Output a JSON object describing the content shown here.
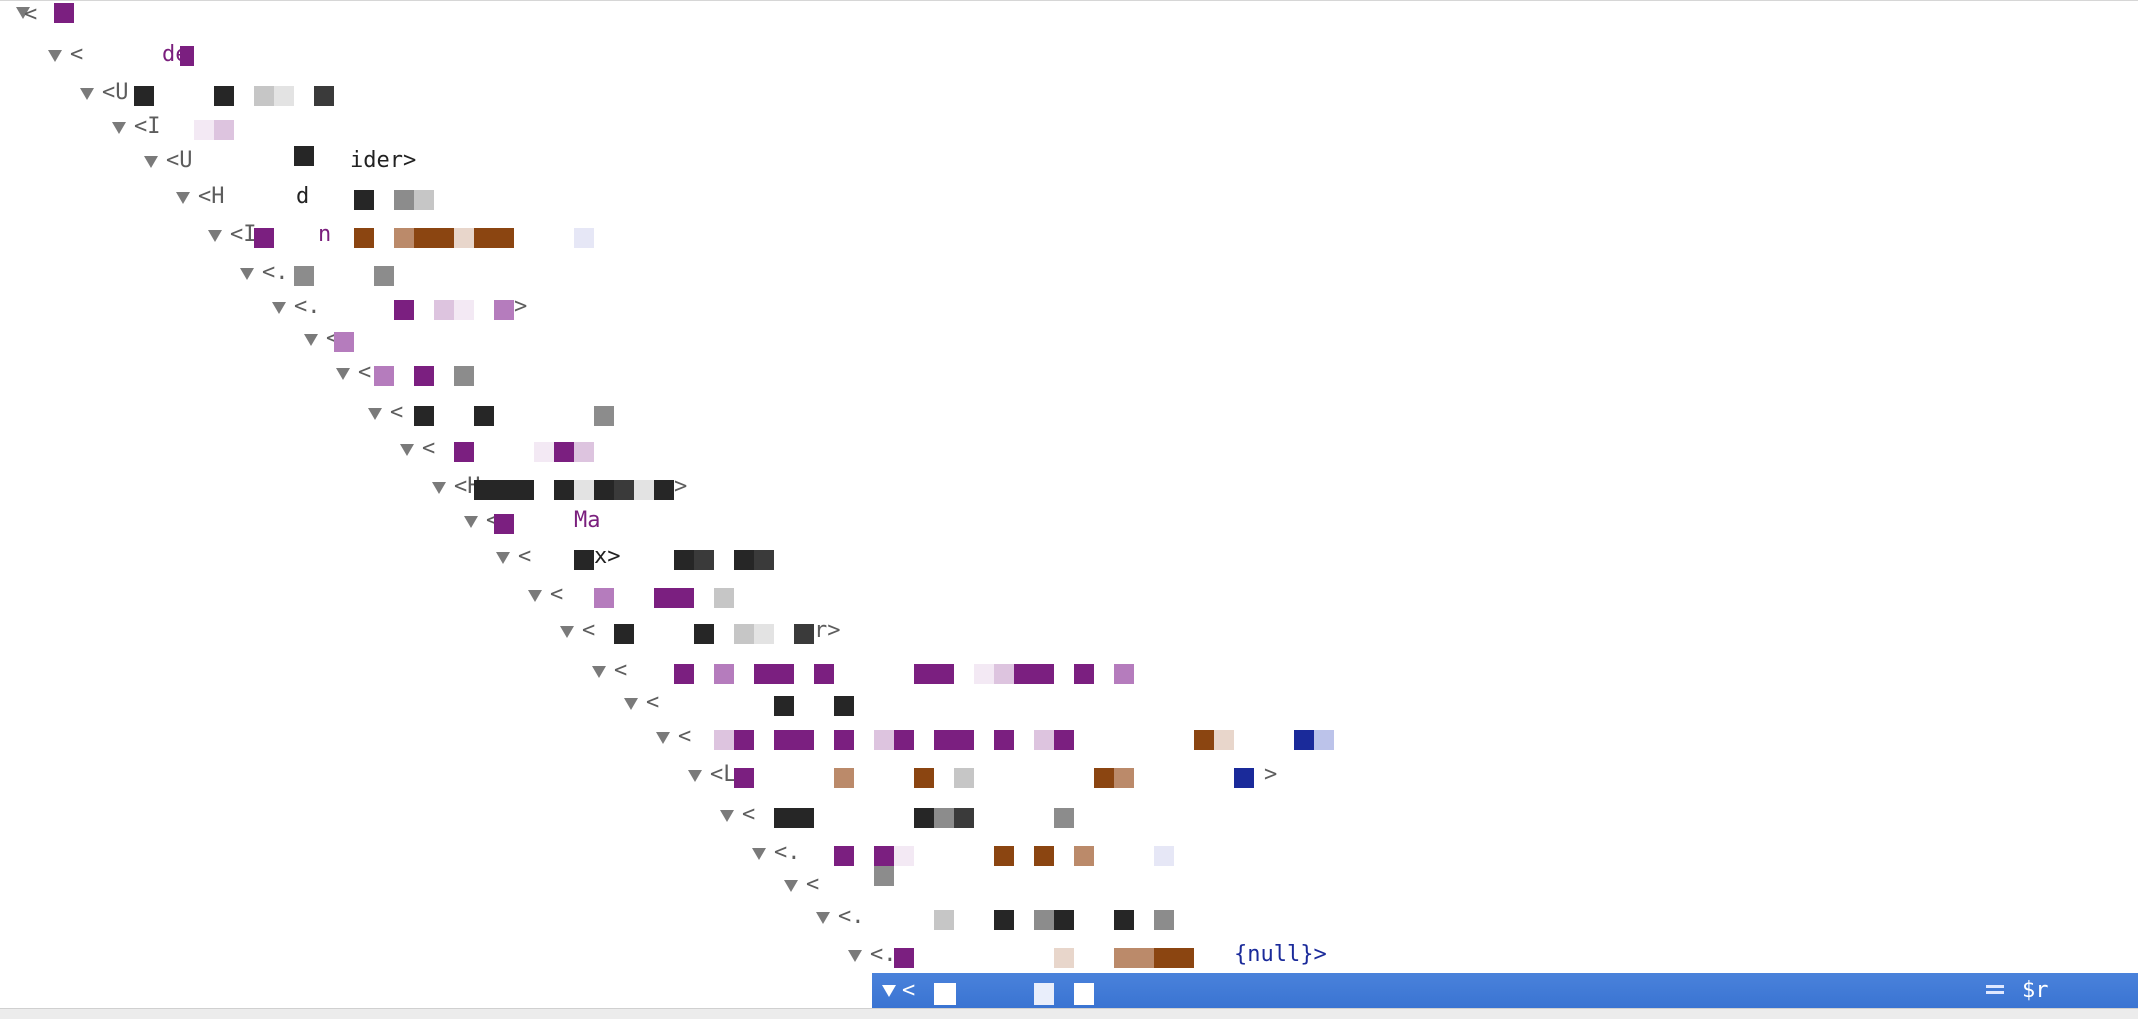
{
  "elements_panel": {
    "rows": [
      {
        "text": "<",
        "suffix": ""
      },
      {
        "text": "<",
        "suffix": "de"
      },
      {
        "text": "<U",
        "suffix": ""
      },
      {
        "text": "<I",
        "suffix": ""
      },
      {
        "text": "<U",
        "suffix": "ider>"
      },
      {
        "text": "<H",
        "suffix": "d"
      },
      {
        "text": "<I",
        "suffix": "n"
      },
      {
        "text": "<.",
        "suffix": ""
      },
      {
        "text": "<.",
        "suffix": ">"
      },
      {
        "text": "<",
        "suffix": ""
      },
      {
        "text": "<",
        "suffix": ""
      },
      {
        "text": "<",
        "suffix": ""
      },
      {
        "text": "<",
        "suffix": ""
      },
      {
        "text": "<H",
        "suffix": ">"
      },
      {
        "text": "<",
        "suffix": "Ma"
      },
      {
        "text": "<",
        "suffix": "x>"
      },
      {
        "text": "<",
        "suffix": ""
      },
      {
        "text": "<",
        "suffix": "r>"
      },
      {
        "text": "<",
        "suffix": ""
      },
      {
        "text": "<",
        "suffix": ""
      },
      {
        "text": "<",
        "suffix": ""
      },
      {
        "text": "<L",
        "suffix": ">"
      },
      {
        "text": "<",
        "suffix": ""
      },
      {
        "text": "<.",
        "suffix": ""
      },
      {
        "text": "<",
        "suffix": ""
      },
      {
        "text": "<.",
        "suffix": ""
      },
      {
        "text": "<.",
        "suffix": "{null}>"
      }
    ],
    "selected_row": {
      "text": "<",
      "console_ref": "$r"
    }
  },
  "colors": {
    "tag_name": "#7a1f7d",
    "selection": "#3a78d6",
    "null_value": "#1a2a9a"
  },
  "icons": {
    "expand": "triangle-down-icon",
    "console_ref": "equals-icon"
  }
}
